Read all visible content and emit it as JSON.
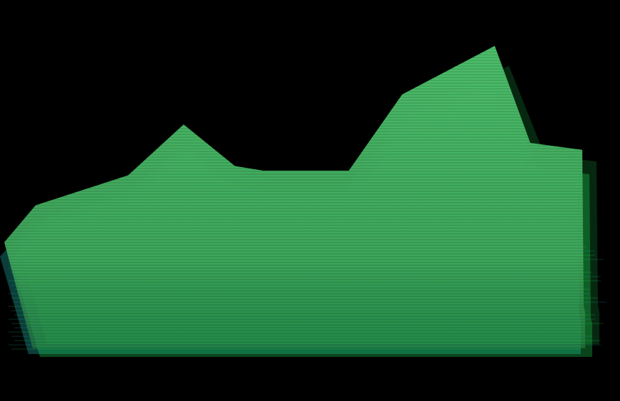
{
  "chart_data": {
    "type": "area",
    "x": [
      0,
      1,
      2,
      3,
      4,
      5,
      6,
      7,
      8,
      9,
      10,
      11,
      12
    ],
    "series": [
      {
        "values": [
          9,
          25,
          38,
          60,
          42,
          40,
          40,
          73,
          94,
          52,
          49,
          0,
          0
        ]
      }
    ],
    "ylim": [
      0,
      100
    ],
    "grid": false,
    "legend": "none",
    "colors": {
      "fill": "#3fa95c",
      "fill_light": "#4cbf6b",
      "background": "#000000",
      "glitch_cyan": "#1fb3a8",
      "glitch_green": "#22e05a"
    }
  }
}
